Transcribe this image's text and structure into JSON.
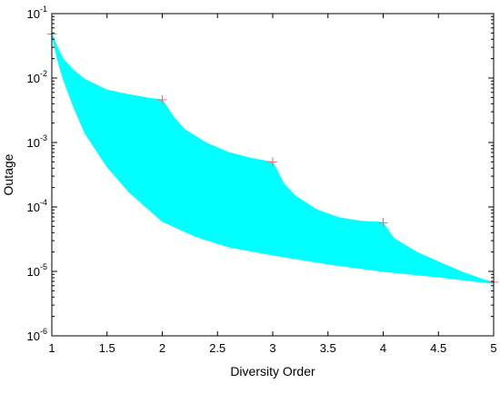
{
  "chart_data": {
    "type": "area",
    "xlabel": "Diversity Order",
    "ylabel": "Outage",
    "xlim": [
      1,
      5
    ],
    "ylim": [
      1e-06,
      0.1
    ],
    "yscale": "log",
    "grid": false,
    "x_ticks": [
      "1",
      "1.5",
      "2",
      "2.5",
      "3",
      "3.5",
      "4",
      "4.5",
      "5"
    ],
    "y_ticks": [
      {
        "base": "10",
        "exp": "-6"
      },
      {
        "base": "10",
        "exp": "-5"
      },
      {
        "base": "10",
        "exp": "-4"
      },
      {
        "base": "10",
        "exp": "-3"
      },
      {
        "base": "10",
        "exp": "-2"
      },
      {
        "base": "10",
        "exp": "-1"
      }
    ],
    "colors": {
      "fill": "#00ffff",
      "markers": "#ff6666",
      "axis": "#000000"
    },
    "series": [
      {
        "role": "upper bound",
        "x": [
          1,
          1.05,
          1.1,
          1.2,
          1.3,
          1.5,
          1.7,
          1.9,
          1.95,
          2,
          2.1,
          2.2,
          2.4,
          2.6,
          2.8,
          2.95,
          3,
          3.1,
          3.2,
          3.4,
          3.6,
          3.8,
          3.95,
          4,
          4.05,
          4.1,
          4.3,
          4.5,
          4.7,
          4.9,
          5
        ],
        "y": [
          0.048,
          0.03,
          0.02,
          0.013,
          0.0095,
          0.0065,
          0.0055,
          0.0048,
          0.0047,
          0.0046,
          0.0025,
          0.0016,
          0.00098,
          0.0007,
          0.00057,
          0.00051,
          0.0005,
          0.00023,
          0.00015,
          9e-05,
          6.8e-05,
          6e-05,
          5.8e-05,
          5.7e-05,
          4.2e-05,
          3.2e-05,
          2e-05,
          1.4e-05,
          1e-05,
          7.5e-06,
          6.8e-06
        ]
      },
      {
        "role": "lower bound",
        "x": [
          1,
          1.05,
          1.1,
          1.2,
          1.3,
          1.5,
          1.7,
          2,
          2.3,
          2.6,
          3,
          3.5,
          4,
          4.5,
          5
        ],
        "y": [
          0.048,
          0.02,
          0.01,
          0.0035,
          0.0014,
          0.00042,
          0.00017,
          6e-05,
          3.5e-05,
          2.4e-05,
          1.8e-05,
          1.3e-05,
          1e-05,
          8.2e-06,
          6.5e-06
        ]
      }
    ],
    "markers": {
      "symbol": "+",
      "x": [
        1,
        2,
        3,
        4,
        5
      ],
      "y": [
        0.048,
        0.0046,
        0.0005,
        5.7e-05,
        6.8e-06
      ]
    }
  }
}
